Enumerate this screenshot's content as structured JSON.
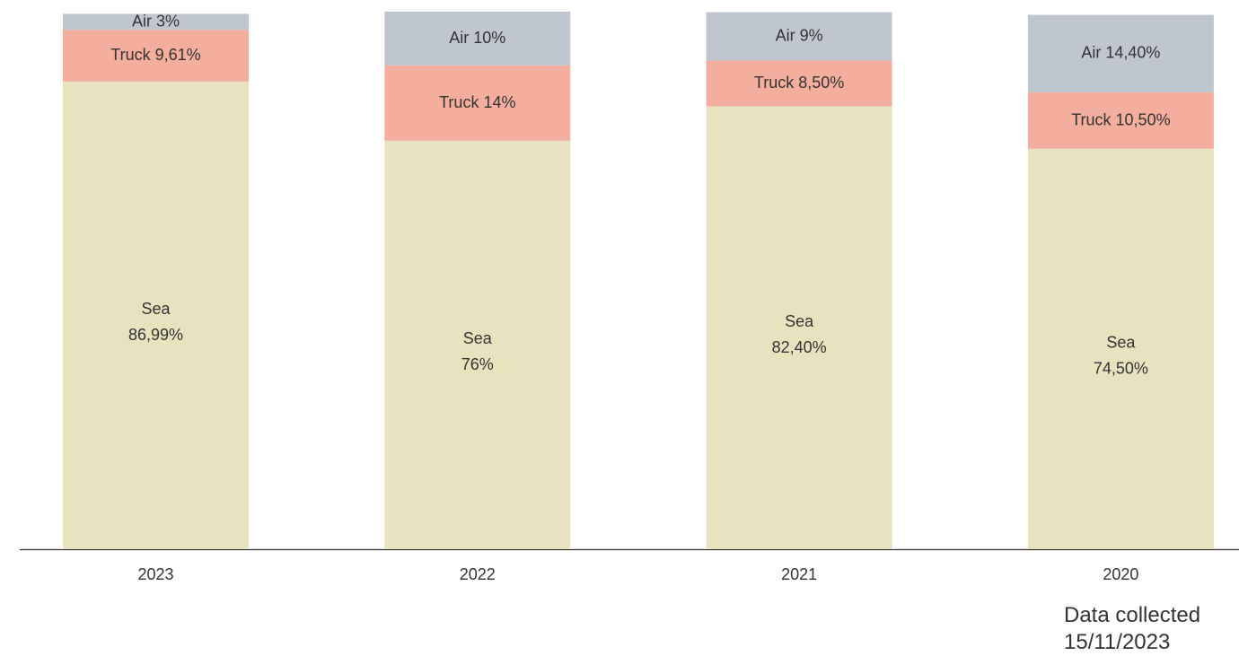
{
  "chart_data": {
    "type": "stacked_bar",
    "categories": [
      "2023",
      "2022",
      "2021",
      "2020"
    ],
    "series": [
      {
        "name": "Sea",
        "color": "#e8e2bf",
        "values": [
          86.99,
          76,
          82.4,
          74.5
        ],
        "value_labels": [
          "86,99%",
          "76%",
          "82,40%",
          "74,50%"
        ]
      },
      {
        "name": "Truck",
        "color": "#f4ae9e",
        "values": [
          9.61,
          14,
          8.5,
          10.5
        ],
        "value_labels": [
          "9,61%",
          "14%",
          "8,50%",
          "10,50%"
        ]
      },
      {
        "name": "Air",
        "color": "#c0c6cf",
        "values": [
          3,
          10,
          9,
          14.4
        ],
        "value_labels": [
          "3%",
          "10%",
          "9%",
          "14,40%"
        ]
      }
    ],
    "ylim": [
      0,
      100
    ],
    "note": "Data collected 15/11/2023"
  }
}
